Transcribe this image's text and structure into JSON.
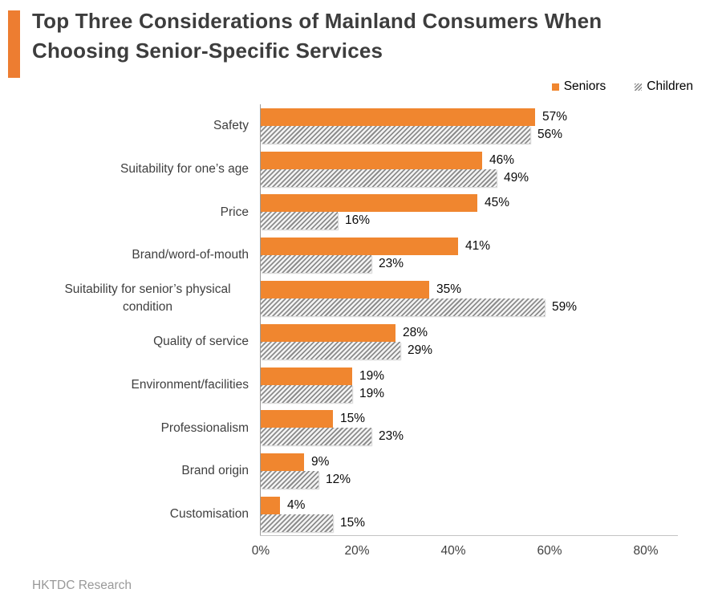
{
  "page": {
    "background": "#ffffff",
    "accent_color": "#ED7D31"
  },
  "header": {
    "title": "Top Three Considerations of Mainland Consumers When Choosing Senior-Specific Services"
  },
  "legend": {
    "items": [
      {
        "label": "Seniors",
        "series_index": 0
      },
      {
        "label": "Children",
        "series_index": 1
      }
    ]
  },
  "chart_data": {
    "type": "bar",
    "orientation": "horizontal",
    "title": "Top Three Considerations of Mainland Consumers When Choosing Senior-Specific Services",
    "categories": [
      "Safety",
      "Suitability for one’s age",
      "Price",
      "Brand/word-of-mouth",
      "Suitability for senior’s physical condition",
      "Quality of service",
      "Environment/facilities",
      "Professionalism",
      "Brand origin",
      "Customisation"
    ],
    "series": [
      {
        "name": "Seniors",
        "style": "solid-orange",
        "color": "#F0862F",
        "values": [
          57,
          46,
          45,
          41,
          35,
          28,
          19,
          15,
          9,
          4
        ]
      },
      {
        "name": "Children",
        "style": "diagonal-hatch",
        "color": "#8c8c8c",
        "values": [
          56,
          49,
          16,
          23,
          59,
          29,
          19,
          23,
          12,
          15
        ]
      }
    ],
    "value_suffix": "%",
    "data_labels": true,
    "xlim": [
      0,
      80
    ],
    "x_ticks": [
      "0%",
      "20%",
      "40%",
      "60%",
      "80%"
    ],
    "grid": false,
    "legend_position": "top-right"
  },
  "footer": {
    "source": "HKTDC Research"
  }
}
